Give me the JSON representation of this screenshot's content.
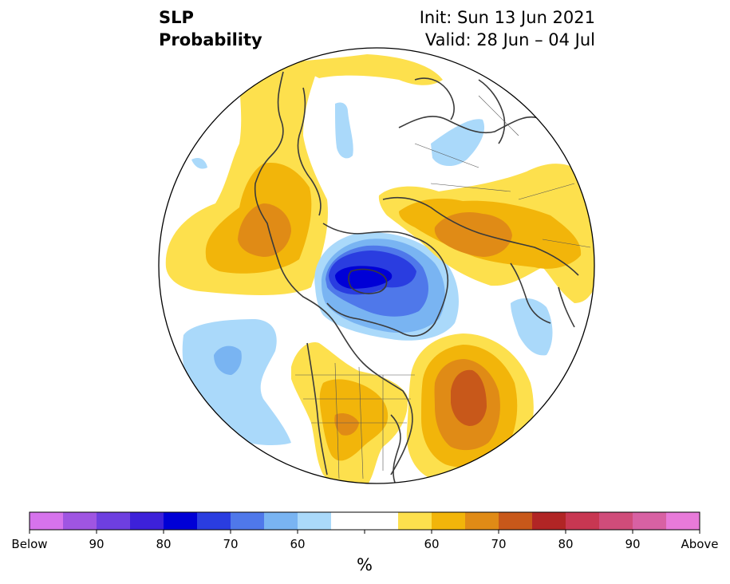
{
  "title": {
    "left_line1": "SLP",
    "left_line2": "Probability",
    "right_line1": "Init: Sun 13 Jun 2021",
    "right_line2": "Valid: 28 Jun – 04 Jul"
  },
  "colorbar": {
    "unit": "%",
    "colors": [
      "#d673ec",
      "#9f55e2",
      "#6e3fe0",
      "#3d21d9",
      "#0000d6",
      "#2a3de0",
      "#4f78ea",
      "#79b4f2",
      "#aad9fa",
      "#ffffff",
      "#ffffff",
      "#fde04d",
      "#f2b50a",
      "#e08b16",
      "#c8581a",
      "#b12525",
      "#c83752",
      "#d04c7a",
      "#d861a3",
      "#e87ad9"
    ],
    "labels": [
      "Below",
      "90",
      "80",
      "70",
      "60",
      "60",
      "70",
      "80",
      "90",
      "Above"
    ]
  },
  "map": {
    "land_outline_color": "#3a3a3a",
    "border_color": "#000000",
    "anomaly_regions": [
      {
        "name": "north-pacific-above",
        "color": "#fde04d"
      },
      {
        "name": "arctic-below",
        "color": "#2a3de0"
      },
      {
        "name": "siberia-above",
        "color": "#e08b16"
      },
      {
        "name": "north-atlantic-above",
        "color": "#c8581a"
      },
      {
        "name": "east-pacific-below",
        "color": "#aad9fa"
      },
      {
        "name": "north-america-above",
        "color": "#f2b50a"
      }
    ]
  }
}
